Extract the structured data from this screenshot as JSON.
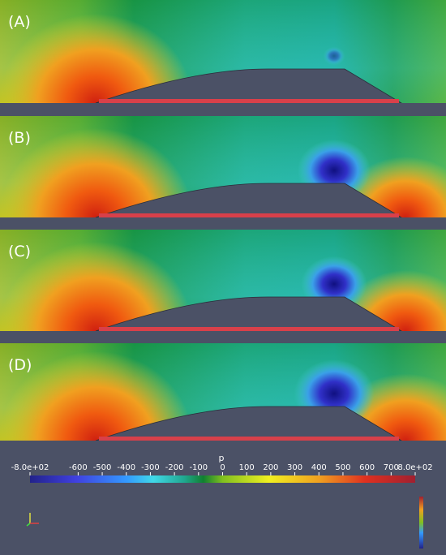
{
  "panels": [
    {
      "label": "(A)"
    },
    {
      "label": "(B)"
    },
    {
      "label": "(C)"
    },
    {
      "label": "(D)"
    }
  ],
  "colorbar": {
    "title": "p",
    "range": [
      -800,
      800
    ],
    "ticks": [
      {
        "value": -800,
        "label": "-8.0e+02"
      },
      -600,
      -500,
      -400,
      -300,
      -200,
      -100,
      0,
      100,
      200,
      300,
      400,
      500,
      600,
      700,
      {
        "value": 800,
        "label": "8.0e+02"
      }
    ]
  }
}
